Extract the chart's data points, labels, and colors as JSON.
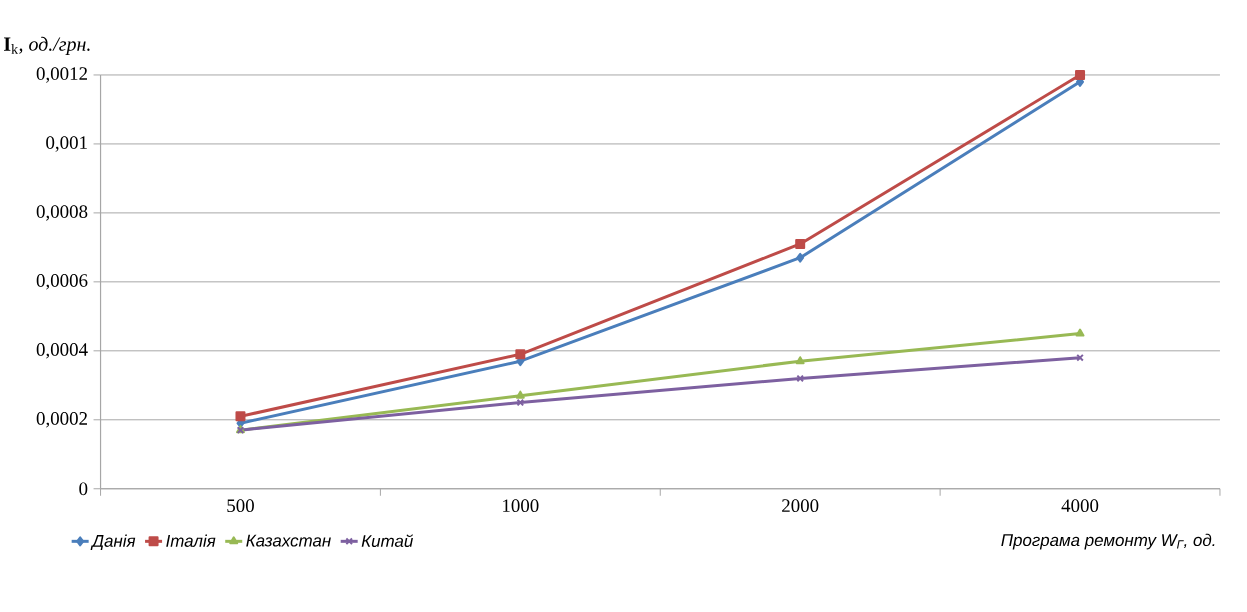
{
  "chart_data": {
    "type": "line",
    "ylabel": "**I**$_{k}$, *од./грн.*",
    "xlabel": "Програма ремонту W$_{Г}$, од.",
    "categories": [
      "500",
      "1000",
      "2000",
      "4000"
    ],
    "series": [
      {
        "name": "Данія",
        "color": "#4a7ebb",
        "marker": "diamond",
        "values": [
          0.00019,
          0.00037,
          0.00067,
          0.00118
        ]
      },
      {
        "name": "Італія",
        "color": "#be4b48",
        "marker": "square",
        "values": [
          0.00021,
          0.00039,
          0.00071,
          0.0012
        ]
      },
      {
        "name": "Казахстан",
        "color": "#98b954",
        "marker": "triangle",
        "values": [
          0.00017,
          0.00027,
          0.00037,
          0.00045
        ]
      },
      {
        "name": "Китай",
        "color": "#7d60a0",
        "marker": "cross",
        "values": [
          0.00017,
          0.00025,
          0.00032,
          0.00038
        ]
      }
    ],
    "ylim": [
      0,
      0.0012
    ],
    "yticks": [
      0,
      {
        "value": 0.0002,
        "label": "0,0002"
      },
      {
        "value": 0.0004,
        "label": "0,0004"
      },
      {
        "value": 0.0006,
        "label": "0,0006"
      },
      {
        "value": 0.0008,
        "label": "0,0008"
      },
      {
        "value": 0.001,
        "label": "0,001"
      },
      {
        "value": 0.0012,
        "label": "0,0012"
      }
    ],
    "grid": "y",
    "legend": "bottom"
  }
}
